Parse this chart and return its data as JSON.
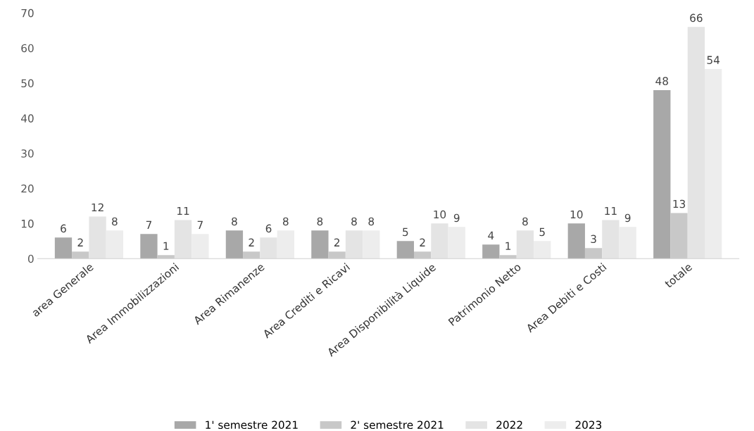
{
  "chart_data": {
    "type": "bar",
    "categories": [
      "area Generale",
      "Area Immobilizzazioni",
      "Area Rimanenze",
      "Area Crediti e Ricavi",
      "Area Disponibilità Liquide",
      "Patrimonio Netto",
      "Area Debiti e Costi",
      "totale"
    ],
    "series": [
      {
        "name": "1' semestre 2021",
        "color": "#a8a8a8",
        "values": [
          6,
          7,
          8,
          8,
          5,
          4,
          10,
          48
        ]
      },
      {
        "name": "2' semestre 2021",
        "color": "#c8c8c8",
        "values": [
          2,
          1,
          2,
          2,
          2,
          1,
          3,
          13
        ]
      },
      {
        "name": "2022",
        "color": "#e4e4e4",
        "values": [
          12,
          11,
          6,
          8,
          10,
          8,
          11,
          66
        ]
      },
      {
        "name": "2023",
        "color": "#ededed",
        "values": [
          8,
          7,
          8,
          8,
          9,
          5,
          9,
          54
        ]
      }
    ],
    "ylim": [
      0,
      70
    ],
    "yticks": [
      0,
      10,
      20,
      30,
      40,
      50,
      60,
      70
    ],
    "data_labels": true,
    "legend": "bottom",
    "grid": false
  }
}
